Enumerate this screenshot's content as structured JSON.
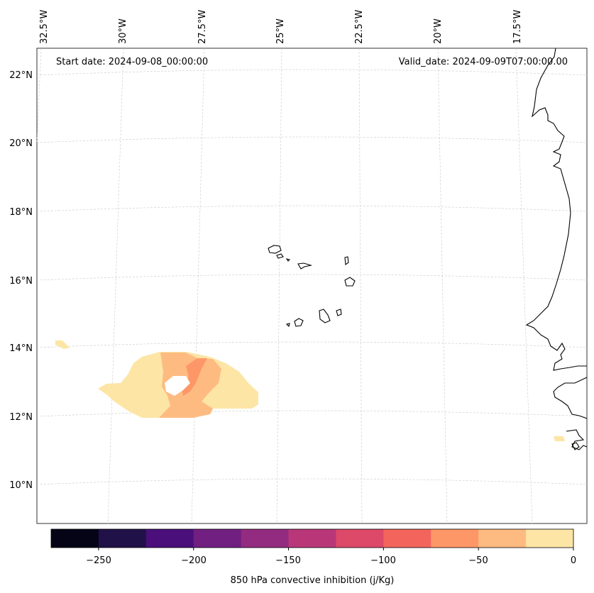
{
  "map": {
    "start_date": "Start date: 2024-09-08_00:00:00",
    "valid_date": "Valid_date: 2024-09-09T07:00:00.00",
    "lon_labels": [
      "32.5°W",
      "30°W",
      "27.5°W",
      "25°W",
      "22.5°W",
      "20°W",
      "17.5°W"
    ],
    "lat_labels": [
      "22°N",
      "20°N",
      "18°N",
      "16°N",
      "14°N",
      "12°N",
      "10°N"
    ],
    "region": "Cape Verde Islands and West African coast",
    "field": "850 hPa convective inhibition"
  },
  "colorbar": {
    "label": "850 hPa convective inhibition (j/Kg)",
    "tick_labels": [
      "−250",
      "−200",
      "−150",
      "−100",
      "−50",
      "0"
    ],
    "range": [
      -275,
      0
    ],
    "step": 25,
    "colors": [
      "#050417",
      "#201148",
      "#4a0f7a",
      "#711f81",
      "#932b80",
      "#b93779",
      "#dd4968",
      "#f3655c",
      "#fd9768",
      "#febb81",
      "#fde5a5"
    ]
  }
}
